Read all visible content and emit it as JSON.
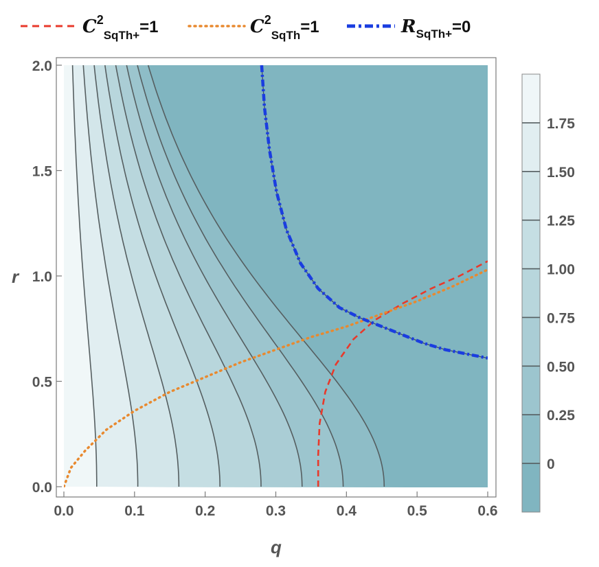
{
  "chart_data": {
    "type": "contour",
    "xlabel": "q",
    "ylabel": "r",
    "xlim": [
      0,
      0.6
    ],
    "ylim": [
      0,
      2.0
    ],
    "x_ticks": [
      "0.0",
      "0.1",
      "0.2",
      "0.3",
      "0.4",
      "0.5",
      "0.6"
    ],
    "y_ticks": [
      "0.0",
      "0.5",
      "1.0",
      "1.5",
      "2.0"
    ],
    "colorbar": {
      "range": [
        -0.25,
        2.0
      ],
      "ticks": [
        "0",
        "0.25",
        "0.50",
        "0.75",
        "1.00",
        "1.25",
        "1.50",
        "1.75"
      ],
      "tick_values": [
        0,
        0.25,
        0.5,
        0.75,
        1.0,
        1.25,
        1.5,
        1.75
      ],
      "color_low": "#79b1bd",
      "color_high": "#f6fafb"
    },
    "contour_levels": [
      0,
      0.25,
      0.5,
      0.75,
      1.0,
      1.25,
      1.5,
      1.75
    ],
    "legend": [
      {
        "label_main": "C",
        "label_sup": "2",
        "label_sub": "SqTh+",
        "label_tail": "=1",
        "style": "dashed",
        "color": "#e8392b"
      },
      {
        "label_main": "C",
        "label_sup": "2",
        "label_sub": "SqTh",
        "label_tail": "=1",
        "style": "dotted",
        "color": "#e8892f"
      },
      {
        "label_main": "R",
        "label_sup": "",
        "label_sub": "SqTh+",
        "label_tail": "=0",
        "style": "dash-dot",
        "color": "#1a3de0"
      }
    ],
    "series": [
      {
        "name": "C²SqTh+=1",
        "color": "#e8392b",
        "points": [
          [
            0.36,
            0.0
          ],
          [
            0.36,
            0.15
          ],
          [
            0.362,
            0.3
          ],
          [
            0.37,
            0.45
          ],
          [
            0.385,
            0.58
          ],
          [
            0.41,
            0.7
          ],
          [
            0.44,
            0.79
          ],
          [
            0.48,
            0.87
          ],
          [
            0.52,
            0.94
          ],
          [
            0.56,
            1.0
          ],
          [
            0.6,
            1.07
          ]
        ]
      },
      {
        "name": "C²SqTh=1",
        "color": "#e8892f",
        "points": [
          [
            0.0,
            0.0
          ],
          [
            0.01,
            0.09
          ],
          [
            0.03,
            0.17
          ],
          [
            0.06,
            0.27
          ],
          [
            0.1,
            0.36
          ],
          [
            0.15,
            0.45
          ],
          [
            0.2,
            0.52
          ],
          [
            0.25,
            0.59
          ],
          [
            0.3,
            0.65
          ],
          [
            0.35,
            0.71
          ],
          [
            0.4,
            0.76
          ],
          [
            0.45,
            0.82
          ],
          [
            0.5,
            0.88
          ],
          [
            0.55,
            0.95
          ],
          [
            0.6,
            1.03
          ]
        ]
      },
      {
        "name": "RSqTh+=0",
        "color": "#1a3de0",
        "points": [
          [
            0.28,
            2.0
          ],
          [
            0.284,
            1.8
          ],
          [
            0.291,
            1.6
          ],
          [
            0.301,
            1.4
          ],
          [
            0.315,
            1.22
          ],
          [
            0.335,
            1.06
          ],
          [
            0.36,
            0.94
          ],
          [
            0.39,
            0.85
          ],
          [
            0.42,
            0.8
          ],
          [
            0.45,
            0.76
          ],
          [
            0.48,
            0.72
          ],
          [
            0.51,
            0.68
          ],
          [
            0.54,
            0.65
          ],
          [
            0.57,
            0.63
          ],
          [
            0.6,
            0.61
          ]
        ]
      }
    ]
  }
}
